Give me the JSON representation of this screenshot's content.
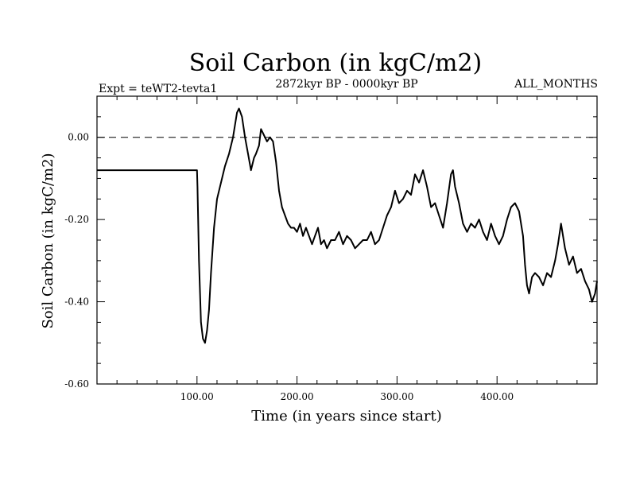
{
  "chart_data": {
    "type": "line",
    "title": "Soil Carbon (in kgC/m2)",
    "experiment_label": "Expt = teWT2-tevta1",
    "period_label": "2872kyr BP - 0000kyr BP",
    "months_label": "ALL_MONTHS",
    "xlabel": "Time (in years since start)",
    "ylabel": "Soil Carbon (in kgC/m2)",
    "xlim": [
      0,
      500
    ],
    "ylim": [
      -0.6,
      0.1
    ],
    "x_ticks": [
      100,
      200,
      300,
      400
    ],
    "x_tick_labels": [
      "100.00",
      "200.00",
      "300.00",
      "400.00"
    ],
    "y_ticks": [
      0.0,
      -0.2,
      -0.4,
      -0.6
    ],
    "y_tick_labels": [
      "0.00",
      "-0.20",
      "-0.40",
      "-0.60"
    ],
    "reference_line": {
      "y": 0.0,
      "style": "dashed"
    },
    "series": [
      {
        "name": "Soil Carbon",
        "x": [
          0,
          100,
          100.5,
          102,
          104,
          106,
          108,
          110,
          112,
          114,
          117,
          120,
          124,
          128,
          132,
          136,
          140,
          142,
          145,
          148,
          151,
          154,
          157,
          159,
          162,
          164,
          166,
          168,
          170,
          173,
          176,
          179,
          182,
          185,
          188,
          191,
          194,
          197,
          200,
          203,
          206,
          209,
          212,
          215,
          218,
          221,
          224,
          227,
          230,
          234,
          238,
          242,
          246,
          250,
          254,
          258,
          262,
          266,
          270,
          274,
          278,
          282,
          286,
          290,
          294,
          298,
          302,
          306,
          310,
          314,
          318,
          322,
          326,
          330,
          334,
          338,
          342,
          346,
          350,
          354,
          356,
          358,
          362,
          366,
          370,
          374,
          378,
          382,
          386,
          390,
          394,
          398,
          402,
          406,
          410,
          414,
          418,
          422,
          426,
          428,
          430,
          432,
          435,
          438,
          442,
          446,
          450,
          454,
          458,
          461,
          464,
          468,
          472,
          476,
          480,
          484,
          488,
          492,
          495,
          498,
          500
        ],
        "values": [
          -0.08,
          -0.08,
          -0.12,
          -0.3,
          -0.45,
          -0.49,
          -0.5,
          -0.47,
          -0.42,
          -0.33,
          -0.22,
          -0.15,
          -0.11,
          -0.07,
          -0.04,
          0.0,
          0.06,
          0.07,
          0.05,
          0.0,
          -0.04,
          -0.08,
          -0.05,
          -0.04,
          -0.02,
          0.02,
          0.01,
          0.0,
          -0.01,
          0.0,
          -0.01,
          -0.06,
          -0.13,
          -0.17,
          -0.19,
          -0.21,
          -0.22,
          -0.22,
          -0.23,
          -0.21,
          -0.24,
          -0.22,
          -0.24,
          -0.26,
          -0.24,
          -0.22,
          -0.26,
          -0.25,
          -0.27,
          -0.25,
          -0.25,
          -0.23,
          -0.26,
          -0.24,
          -0.25,
          -0.27,
          -0.26,
          -0.25,
          -0.25,
          -0.23,
          -0.26,
          -0.25,
          -0.22,
          -0.19,
          -0.17,
          -0.13,
          -0.16,
          -0.15,
          -0.13,
          -0.14,
          -0.09,
          -0.11,
          -0.08,
          -0.12,
          -0.17,
          -0.16,
          -0.19,
          -0.22,
          -0.16,
          -0.09,
          -0.08,
          -0.12,
          -0.16,
          -0.21,
          -0.23,
          -0.21,
          -0.22,
          -0.2,
          -0.23,
          -0.25,
          -0.21,
          -0.24,
          -0.26,
          -0.24,
          -0.2,
          -0.17,
          -0.16,
          -0.18,
          -0.24,
          -0.31,
          -0.36,
          -0.38,
          -0.34,
          -0.33,
          -0.34,
          -0.36,
          -0.33,
          -0.34,
          -0.3,
          -0.26,
          -0.21,
          -0.27,
          -0.31,
          -0.29,
          -0.33,
          -0.32,
          -0.35,
          -0.37,
          -0.4,
          -0.38,
          -0.35
        ]
      }
    ]
  }
}
